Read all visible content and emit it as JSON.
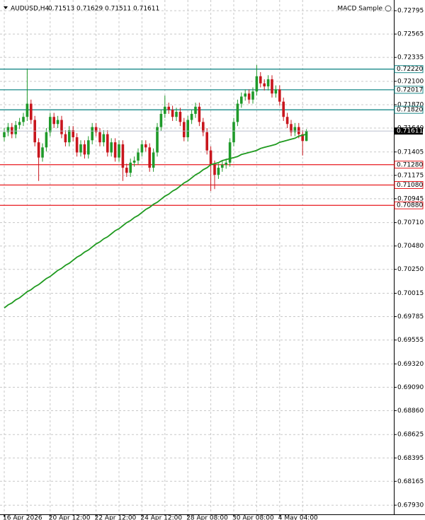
{
  "chart_data": {
    "type": "candlestick",
    "title": "AUDUSD,H4",
    "indicator_label": "MACD Sample",
    "up_color": "#1f9a2a",
    "down_color": "#c8161d",
    "grid": true,
    "ylim": [
      0.6784,
      0.729
    ],
    "yticks": [
      {
        "value": 0.72795,
        "label": "0.72795"
      },
      {
        "value": 0.72565,
        "label": "0.72565"
      },
      {
        "value": 0.72335,
        "label": "0.72335"
      },
      {
        "value": 0.721,
        "label": "0.72100"
      },
      {
        "value": 0.7187,
        "label": "0.71870"
      },
      {
        "value": 0.7164,
        "label": "0.71640"
      },
      {
        "value": 0.71405,
        "label": "0.71405"
      },
      {
        "value": 0.71175,
        "label": "0.71175"
      },
      {
        "value": 0.70945,
        "label": "0.70945"
      },
      {
        "value": 0.7071,
        "label": "0.70710"
      },
      {
        "value": 0.7048,
        "label": "0.70480"
      },
      {
        "value": 0.7025,
        "label": "0.70250"
      },
      {
        "value": 0.70015,
        "label": "0.70015"
      },
      {
        "value": 0.69785,
        "label": "0.69785"
      },
      {
        "value": 0.69555,
        "label": "0.69555"
      },
      {
        "value": 0.6932,
        "label": "0.69320"
      },
      {
        "value": 0.6909,
        "label": "0.69090"
      },
      {
        "value": 0.6886,
        "label": "0.68860"
      },
      {
        "value": 0.68625,
        "label": "0.68625"
      },
      {
        "value": 0.68395,
        "label": "0.68395"
      },
      {
        "value": 0.68165,
        "label": "0.68165"
      },
      {
        "value": 0.6793,
        "label": "0.67930"
      }
    ],
    "categories": [
      "16 Apr 2026",
      null,
      null,
      null,
      null,
      null,
      null,
      null,
      null,
      null,
      null,
      null,
      "20 Apr 12:00",
      null,
      null,
      null,
      null,
      null,
      null,
      null,
      null,
      null,
      null,
      null,
      "22 Apr 12:00",
      null,
      null,
      null,
      null,
      null,
      null,
      null,
      null,
      null,
      null,
      null,
      "24 Apr 12:00",
      null,
      null,
      null,
      null,
      null,
      null,
      null,
      null,
      null,
      null,
      null,
      "28 Apr 08:00",
      null,
      null,
      null,
      null,
      null,
      null,
      null,
      null,
      null,
      null,
      null,
      "30 Apr 08:00",
      null,
      null,
      null,
      null,
      null,
      null,
      null,
      null,
      null,
      null,
      null,
      "4 May 04:00",
      null,
      null,
      null,
      null,
      null,
      null,
      null
    ],
    "open": [
      0.7155,
      0.716,
      0.7165,
      0.7158,
      0.7167,
      0.717,
      0.7175,
      0.7188,
      0.7172,
      0.715,
      0.7135,
      0.7145,
      0.716,
      0.7175,
      0.7168,
      0.7172,
      0.7158,
      0.715,
      0.7162,
      0.7155,
      0.714,
      0.7148,
      0.7138,
      0.7152,
      0.7165,
      0.716,
      0.715,
      0.7158,
      0.714,
      0.715,
      0.7135,
      0.7148,
      0.7125,
      0.712,
      0.713,
      0.7132,
      0.714,
      0.7148,
      0.7145,
      0.7125,
      0.714,
      0.7165,
      0.7178,
      0.7185,
      0.7182,
      0.7175,
      0.718,
      0.717,
      0.7155,
      0.7172,
      0.7178,
      0.7185,
      0.717,
      0.716,
      0.7142,
      0.7128,
      0.7118,
      0.7125,
      0.7128,
      0.713,
      0.715,
      0.717,
      0.7188,
      0.7195,
      0.7198,
      0.7192,
      0.72,
      0.7215,
      0.7208,
      0.7205,
      0.7212,
      0.7198,
      0.7202,
      0.719,
      0.7175,
      0.7168,
      0.716,
      0.7165,
      0.7158,
      0.71513
    ],
    "high": [
      0.7164,
      0.7169,
      0.7169,
      0.7171,
      0.7174,
      0.7179,
      0.7222,
      0.7192,
      0.7176,
      0.7154,
      0.7149,
      0.7164,
      0.7179,
      0.7179,
      0.7176,
      0.7176,
      0.7162,
      0.7166,
      0.7166,
      0.7159,
      0.7152,
      0.7152,
      0.7156,
      0.7169,
      0.7169,
      0.7164,
      0.7162,
      0.7162,
      0.7154,
      0.7154,
      0.7152,
      0.7152,
      0.7129,
      0.7134,
      0.7136,
      0.7144,
      0.7152,
      0.7152,
      0.7149,
      0.7144,
      0.7169,
      0.7182,
      0.7196,
      0.7189,
      0.7186,
      0.7184,
      0.7184,
      0.7174,
      0.7176,
      0.7182,
      0.7189,
      0.7189,
      0.7174,
      0.7164,
      0.7146,
      0.7132,
      0.7129,
      0.7132,
      0.7134,
      0.7154,
      0.7174,
      0.7192,
      0.7199,
      0.7202,
      0.7202,
      0.7204,
      0.7226,
      0.7219,
      0.7212,
      0.7216,
      0.7216,
      0.7206,
      0.7206,
      0.7194,
      0.7179,
      0.7172,
      0.7169,
      0.7169,
      0.7162,
      0.71629
    ],
    "low": [
      0.7151,
      0.7156,
      0.7154,
      0.7154,
      0.7163,
      0.7166,
      0.7171,
      0.7168,
      0.7146,
      0.7112,
      0.7131,
      0.7141,
      0.7156,
      0.7164,
      0.7164,
      0.7154,
      0.7146,
      0.7146,
      0.7151,
      0.7136,
      0.7136,
      0.7134,
      0.7134,
      0.7148,
      0.7156,
      0.7146,
      0.7146,
      0.7136,
      0.7136,
      0.7131,
      0.7131,
      0.7112,
      0.7116,
      0.7116,
      0.7126,
      0.7128,
      0.7136,
      0.7141,
      0.7121,
      0.7121,
      0.7136,
      0.7161,
      0.7174,
      0.7178,
      0.7171,
      0.7171,
      0.7166,
      0.7151,
      0.7151,
      0.7168,
      0.7174,
      0.7166,
      0.7156,
      0.7138,
      0.7102,
      0.7104,
      0.7114,
      0.7121,
      0.7124,
      0.7126,
      0.7146,
      0.7166,
      0.7184,
      0.7191,
      0.7188,
      0.7188,
      0.7196,
      0.7204,
      0.7201,
      0.7201,
      0.7194,
      0.7194,
      0.7186,
      0.7171,
      0.7164,
      0.7156,
      0.7156,
      0.7154,
      0.7137,
      0.71511
    ],
    "close": [
      0.716,
      0.7165,
      0.7158,
      0.7167,
      0.717,
      0.7175,
      0.7188,
      0.7172,
      0.715,
      0.7135,
      0.7145,
      0.716,
      0.7175,
      0.7168,
      0.7172,
      0.7158,
      0.715,
      0.7162,
      0.7155,
      0.714,
      0.7148,
      0.7138,
      0.7152,
      0.7165,
      0.716,
      0.715,
      0.7158,
      0.714,
      0.715,
      0.7135,
      0.7148,
      0.7125,
      0.712,
      0.713,
      0.7132,
      0.714,
      0.7148,
      0.7145,
      0.7125,
      0.714,
      0.7165,
      0.7178,
      0.7185,
      0.7182,
      0.7175,
      0.718,
      0.717,
      0.7155,
      0.7172,
      0.7178,
      0.7185,
      0.717,
      0.716,
      0.7142,
      0.7128,
      0.7118,
      0.7125,
      0.7128,
      0.713,
      0.715,
      0.717,
      0.7188,
      0.7195,
      0.7198,
      0.7192,
      0.72,
      0.7215,
      0.7208,
      0.7205,
      0.7212,
      0.7198,
      0.7202,
      0.719,
      0.7175,
      0.7168,
      0.716,
      0.7165,
      0.7158,
      0.71513,
      0.71611
    ],
    "moving_average": {
      "color": "#1f9a1f",
      "values": [
        0.6987,
        0.699,
        0.6992,
        0.6995,
        0.6997,
        0.7,
        0.7003,
        0.7005,
        0.7008,
        0.701,
        0.7013,
        0.7016,
        0.7018,
        0.7021,
        0.7024,
        0.7026,
        0.7029,
        0.7031,
        0.7034,
        0.7037,
        0.7039,
        0.7042,
        0.7044,
        0.7047,
        0.705,
        0.7052,
        0.7055,
        0.7057,
        0.706,
        0.7063,
        0.7065,
        0.7068,
        0.7071,
        0.7073,
        0.7076,
        0.7078,
        0.7081,
        0.7084,
        0.7086,
        0.7089,
        0.7091,
        0.7094,
        0.7097,
        0.7099,
        0.7102,
        0.7104,
        0.7107,
        0.711,
        0.7112,
        0.7115,
        0.7118,
        0.712,
        0.7123,
        0.7125,
        0.7128,
        0.7129,
        0.713,
        0.7132,
        0.7133,
        0.7134,
        0.7135,
        0.7136,
        0.7138,
        0.7139,
        0.714,
        0.7141,
        0.7142,
        0.7144,
        0.7145,
        0.7146,
        0.7147,
        0.7148,
        0.715,
        0.7151,
        0.7152,
        0.7153,
        0.7154,
        0.7156,
        0.7157,
        0.7158
      ]
    },
    "levels": [
      {
        "value": 0.7222,
        "label": "0.72220",
        "color": "#1a8a8a"
      },
      {
        "value": 0.72017,
        "label": "0.72017",
        "color": "#1a8a8a"
      },
      {
        "value": 0.7182,
        "label": "0.71820",
        "color": "#1a8a8a"
      },
      {
        "value": 0.7128,
        "label": "0.71280",
        "color": "#e8191e"
      },
      {
        "value": 0.7108,
        "label": "0.71080",
        "color": "#e8191e"
      },
      {
        "value": 0.7088,
        "label": "0.70880",
        "color": "#e8191e"
      }
    ]
  }
}
